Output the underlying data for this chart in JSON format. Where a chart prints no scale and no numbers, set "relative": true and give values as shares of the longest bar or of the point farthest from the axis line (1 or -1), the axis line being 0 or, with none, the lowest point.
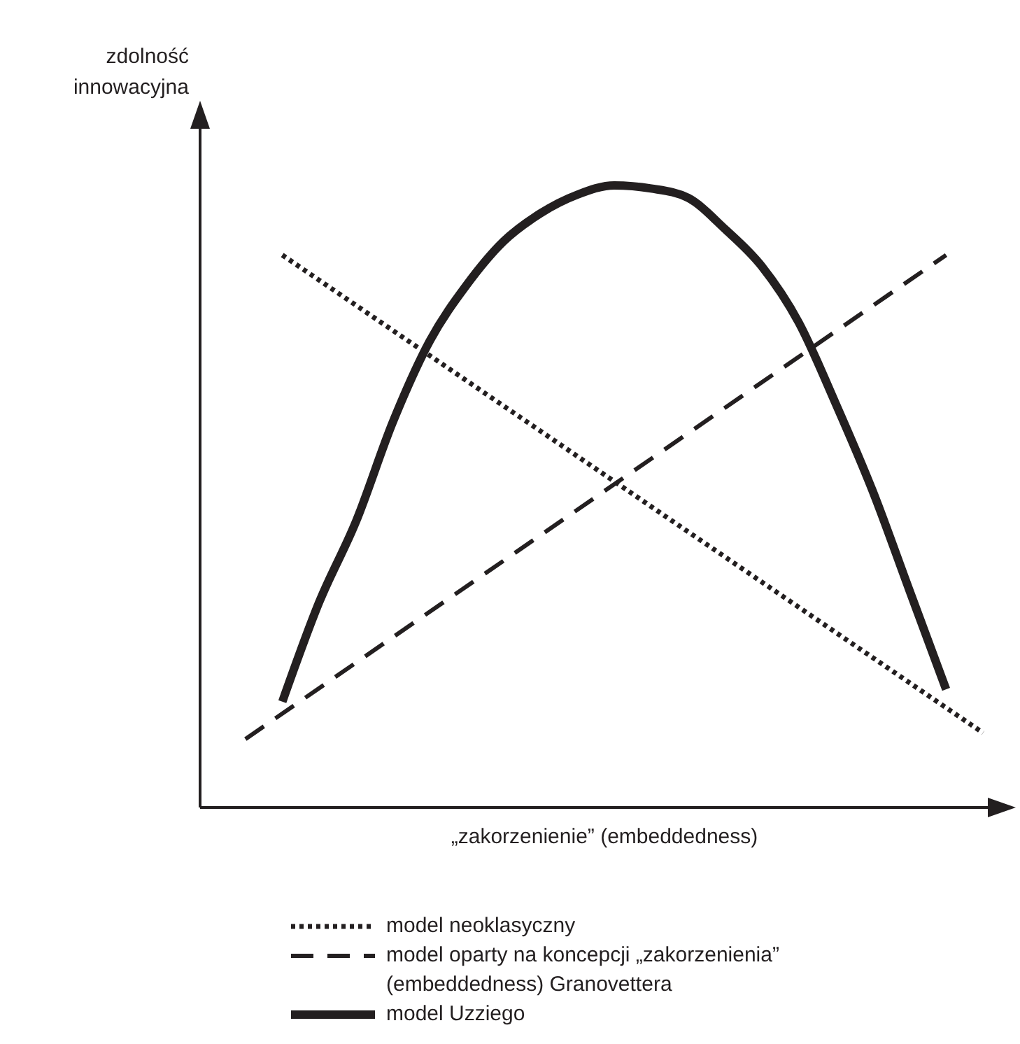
{
  "chart_data": {
    "type": "line",
    "relative": true,
    "xlabel": "„zakorzenienie” (embeddedness)",
    "ylabel": "zdolność innowacyjna",
    "categories": [
      null,
      null,
      null,
      null,
      null,
      null,
      null,
      null,
      null,
      null,
      null,
      null,
      null,
      null,
      null,
      null,
      null,
      null,
      null,
      null,
      null
    ],
    "series": [
      {
        "name": "model neoklasyczny",
        "color": "#231f20",
        "line_style": "dotted",
        "values": [
          null,
          0.888,
          null,
          null,
          null,
          null,
          null,
          null,
          null,
          null,
          null,
          null,
          null,
          null,
          null,
          null,
          null,
          null,
          null,
          null,
          0.12
        ]
      },
      {
        "name": "model oparty na koncepcji „zakorzenienia” (embeddedness) Granovettera",
        "color": "#231f20",
        "line_style": "dashed",
        "values": [
          0.11,
          null,
          null,
          null,
          null,
          null,
          null,
          null,
          null,
          null,
          null,
          null,
          null,
          null,
          null,
          null,
          null,
          null,
          null,
          0.888,
          null
        ]
      },
      {
        "name": "model Uzziego",
        "color": "#231f20",
        "line_style": "solid",
        "values": [
          null,
          0.17,
          0.33,
          0.46,
          0.62,
          0.75,
          0.84,
          0.91,
          0.955,
          0.985,
          1,
          0.995,
          0.98,
          0.93,
          0.87,
          0.78,
          0.65,
          0.51,
          0.35,
          0.19,
          null
        ]
      }
    ],
    "marker": "none",
    "grid": false,
    "legend": "bottom"
  }
}
